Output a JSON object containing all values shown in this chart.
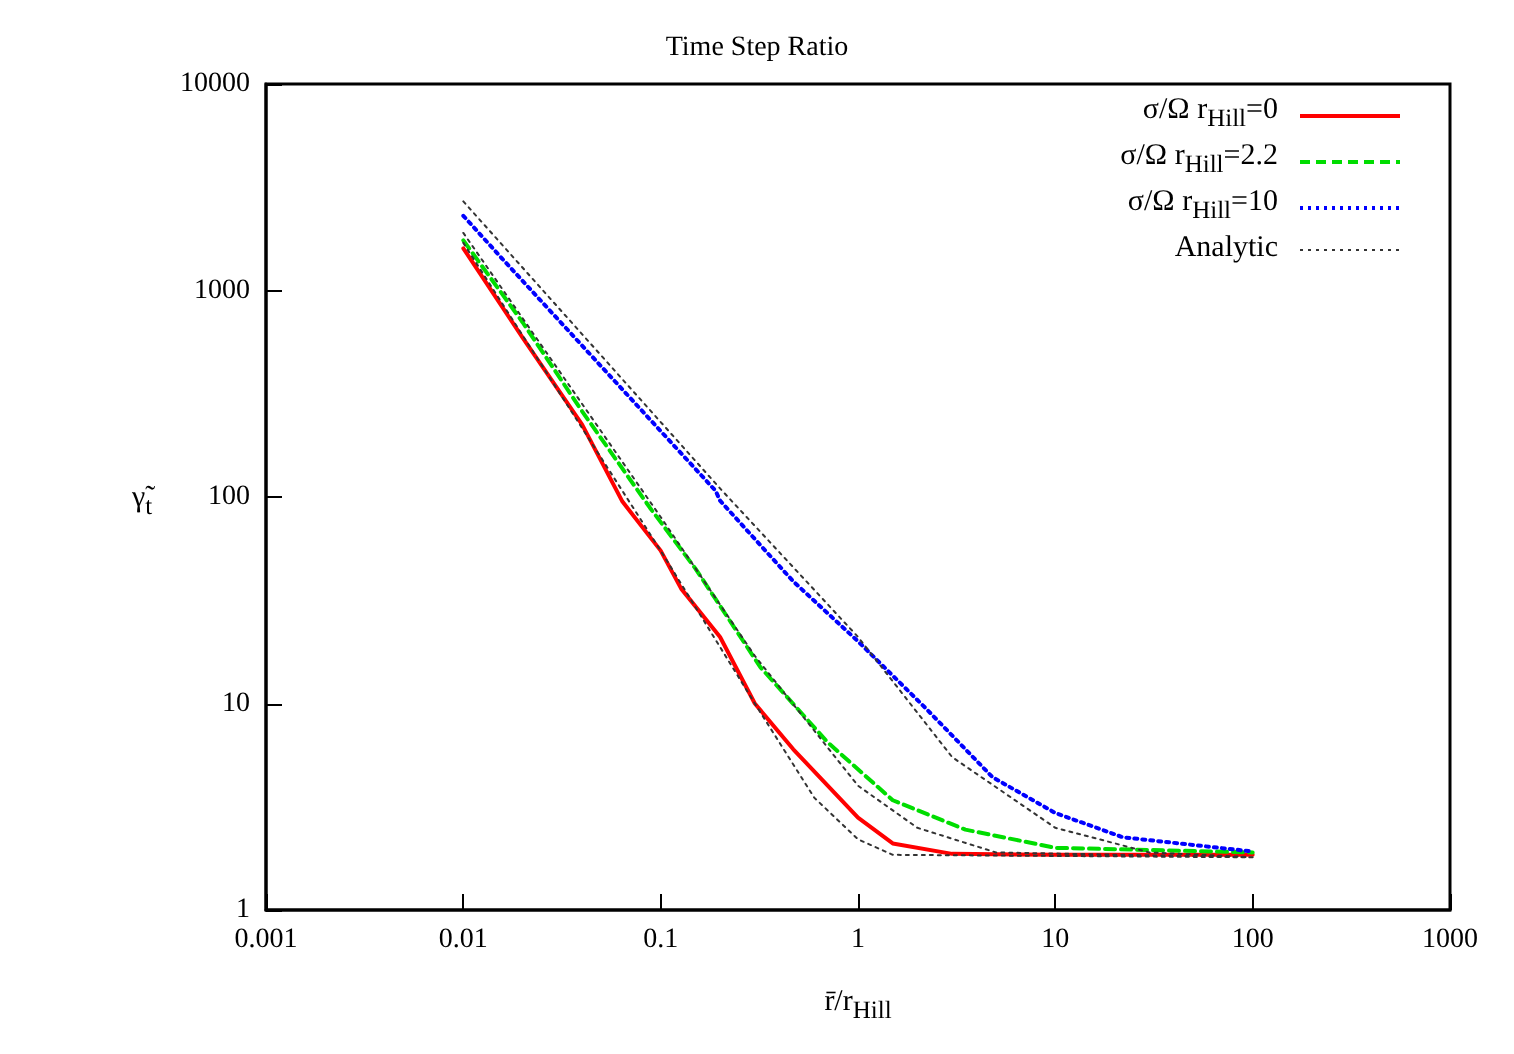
{
  "chart_data": {
    "type": "line",
    "title": "Time Step Ratio",
    "xlabel": "r̄/r$_{Hill}$",
    "ylabel": "γ̃$_{t}$",
    "log": "xy",
    "xlim": [
      0.001,
      1000
    ],
    "xticks": [
      0.001,
      0.01,
      0.1,
      1,
      10,
      100,
      1000
    ],
    "ylim": [
      1,
      10000
    ],
    "yticks": [
      1,
      10,
      100,
      1000,
      10000
    ],
    "grid": false,
    "legend": "top right",
    "marker": "none",
    "series": [
      {
        "name": "σ/Ω r$_{Hill}$=0",
        "color": "#ff0000",
        "line_style": "solid",
        "x": [
          0.01,
          0.02,
          0.04,
          0.064,
          0.1,
          0.127,
          0.2,
          0.3,
          0.47,
          1,
          1.5,
          3,
          10,
          100
        ],
        "values": [
          1600,
          590,
          224,
          95,
          55,
          36,
          21,
          10,
          6,
          2.8,
          2.1,
          1.87,
          1.85,
          1.85
        ]
      },
      {
        "name": "σ/Ω r$_{Hill}$=2.2",
        "color": "#00dd00",
        "line_style": "dashed",
        "x": [
          0.01,
          0.02,
          0.04,
          0.088,
          0.15,
          0.19,
          0.32,
          0.7,
          1.5,
          3.5,
          10,
          100
        ],
        "values": [
          1750,
          700,
          260,
          89,
          45,
          32,
          15,
          6.5,
          3.4,
          2.45,
          2,
          1.9
        ]
      },
      {
        "name": "σ/Ω r$_{Hill}$=10",
        "color": "#0000ff",
        "line_style": "dotted",
        "x": [
          0.01,
          0.0158,
          0.19,
          0.2,
          0.47,
          1,
          2.2,
          4.8,
          10,
          22,
          100
        ],
        "values": [
          2300,
          1420,
          107,
          96,
          39,
          20,
          9.5,
          4.4,
          2.95,
          2.25,
          1.92
        ]
      },
      {
        "name": "Analytic",
        "color": "#333333",
        "line_style": "dotted",
        "x": [
          0.01,
          0.1,
          0.3,
          0.6,
          1,
          1.5,
          100,
          null,
          0.01,
          0.1,
          0.3,
          1,
          2,
          5,
          100,
          null,
          0.01,
          0.2,
          1,
          3,
          10,
          30,
          100
        ],
        "values": [
          1700,
          55,
          10,
          3.5,
          2.2,
          1.85,
          1.8,
          null,
          1900,
          80,
          17,
          4,
          2.5,
          1.9,
          1.8,
          null,
          2700,
          110,
          21,
          5.5,
          2.5,
          1.9,
          1.8
        ]
      }
    ]
  }
}
